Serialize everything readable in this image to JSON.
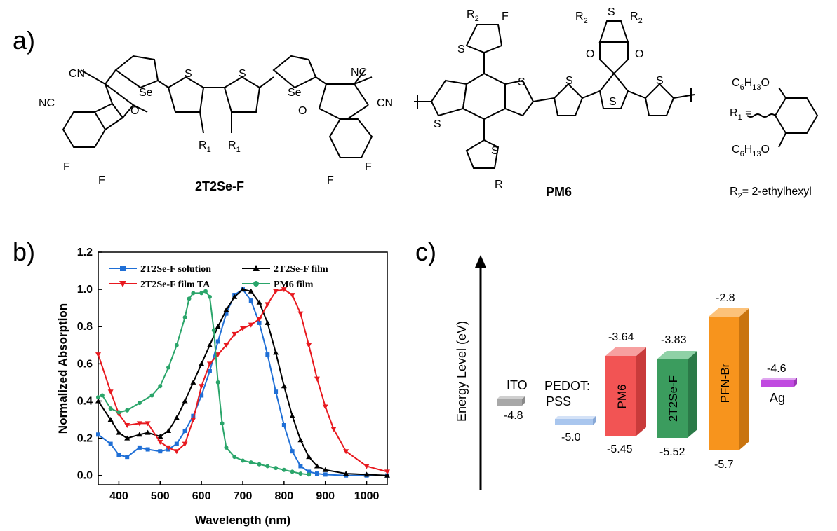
{
  "panel_a": {
    "label": "a)",
    "molecule_1": {
      "name": "2T2Se-F",
      "atoms": {
        "cn": "CN",
        "nc": "NC",
        "o": "O",
        "se": "Se",
        "s": "S",
        "f": "F",
        "r1": "R",
        "r1_sub": "1"
      }
    },
    "molecule_2": {
      "name": "PM6",
      "atoms": {
        "s": "S",
        "f": "F",
        "o": "O",
        "r": "R",
        "r2": "R",
        "r2_sub": "2"
      }
    },
    "legend": {
      "r1_label": "R",
      "r1_sub": "1",
      "eq": " =",
      "c6h13o_top": "C",
      "c6_sub": "6",
      "h": "H",
      "h13_sub": "13",
      "o": "O",
      "r2_label": "R",
      "r2_sub": "2",
      "r2_value": "= 2-ethylhexyl"
    }
  },
  "panel_b": {
    "label": "b)",
    "chart_data": {
      "type": "line",
      "xlabel": "Wavelength (nm)",
      "ylabel": "Normalized Absorption",
      "xlim": [
        350,
        1050
      ],
      "ylim": [
        -0.05,
        1.2
      ],
      "xticks": [
        "400",
        "500",
        "600",
        "700",
        "800",
        "900",
        "1000"
      ],
      "yticks": [
        "0.0",
        "0.2",
        "0.4",
        "0.6",
        "0.8",
        "1.0",
        "1.2"
      ],
      "legend_position": "top",
      "series": [
        {
          "name": "2T2Se-F solution",
          "color": "#1f6fd6",
          "marker": "square",
          "x": [
            350,
            380,
            400,
            420,
            450,
            470,
            500,
            520,
            540,
            560,
            580,
            600,
            620,
            640,
            660,
            680,
            700,
            720,
            740,
            760,
            780,
            800,
            820,
            840,
            860,
            880,
            900,
            950,
            1000,
            1050
          ],
          "y": [
            0.22,
            0.17,
            0.11,
            0.1,
            0.15,
            0.14,
            0.13,
            0.14,
            0.17,
            0.24,
            0.32,
            0.43,
            0.56,
            0.72,
            0.87,
            0.97,
            1.0,
            0.94,
            0.82,
            0.65,
            0.45,
            0.27,
            0.13,
            0.05,
            0.02,
            0.01,
            0.005,
            0.0,
            0.0,
            0.0
          ]
        },
        {
          "name": "2T2Se-F film",
          "color": "#000000",
          "marker": "triangle-up",
          "x": [
            350,
            380,
            400,
            420,
            450,
            470,
            500,
            520,
            540,
            560,
            580,
            600,
            620,
            640,
            660,
            680,
            700,
            720,
            740,
            760,
            780,
            800,
            820,
            840,
            860,
            880,
            900,
            950,
            1000,
            1050
          ],
          "y": [
            0.4,
            0.3,
            0.23,
            0.2,
            0.22,
            0.23,
            0.21,
            0.24,
            0.31,
            0.4,
            0.5,
            0.6,
            0.7,
            0.8,
            0.89,
            0.96,
            1.0,
            0.99,
            0.93,
            0.82,
            0.66,
            0.48,
            0.32,
            0.19,
            0.1,
            0.05,
            0.03,
            0.01,
            0.005,
            0.0
          ]
        },
        {
          "name": "2T2Se-F film TA",
          "color": "#e8191f",
          "marker": "triangle-down",
          "x": [
            350,
            380,
            400,
            420,
            450,
            470,
            500,
            520,
            540,
            560,
            580,
            600,
            620,
            640,
            660,
            680,
            700,
            720,
            740,
            760,
            780,
            800,
            820,
            840,
            860,
            880,
            900,
            920,
            950,
            1000,
            1050
          ],
          "y": [
            0.65,
            0.45,
            0.33,
            0.27,
            0.28,
            0.28,
            0.18,
            0.15,
            0.13,
            0.17,
            0.3,
            0.48,
            0.6,
            0.65,
            0.7,
            0.76,
            0.79,
            0.81,
            0.84,
            0.92,
            0.99,
            1.0,
            0.97,
            0.87,
            0.7,
            0.52,
            0.37,
            0.25,
            0.13,
            0.05,
            0.02
          ]
        },
        {
          "name": "PM6 film",
          "color": "#2aa56a",
          "marker": "circle",
          "x": [
            350,
            360,
            380,
            400,
            420,
            450,
            480,
            500,
            520,
            540,
            560,
            570,
            580,
            600,
            610,
            620,
            630,
            640,
            650,
            660,
            680,
            700,
            720,
            740,
            760,
            780,
            800,
            820,
            840,
            860
          ],
          "y": [
            0.42,
            0.43,
            0.36,
            0.34,
            0.35,
            0.39,
            0.43,
            0.48,
            0.58,
            0.7,
            0.85,
            0.95,
            0.98,
            0.98,
            0.99,
            0.96,
            0.78,
            0.5,
            0.28,
            0.15,
            0.1,
            0.08,
            0.07,
            0.06,
            0.05,
            0.04,
            0.03,
            0.02,
            0.01,
            0.005
          ]
        }
      ]
    }
  },
  "panel_c": {
    "label": "c)",
    "ylabel": "Energy Level (eV)",
    "materials": [
      {
        "name": "ITO",
        "level": "-4.8",
        "color": "#a8a8a8"
      },
      {
        "name_line1": "PEDOT:",
        "name_line2": "PSS",
        "level": "-5.0",
        "color": "#a9c6ee"
      },
      {
        "name": "PM6",
        "lumo": "-3.64",
        "homo": "-5.45",
        "color": "#f25454"
      },
      {
        "name": "2T2Se-F",
        "lumo": "-3.83",
        "homo": "-5.52",
        "color": "#3b9c5e"
      },
      {
        "name": "PFN-Br",
        "lumo": "-2.8",
        "homo": "-5.7",
        "color": "#f7941d"
      },
      {
        "name": "Ag",
        "level": "-4.6",
        "color": "#c04ae0"
      }
    ]
  }
}
